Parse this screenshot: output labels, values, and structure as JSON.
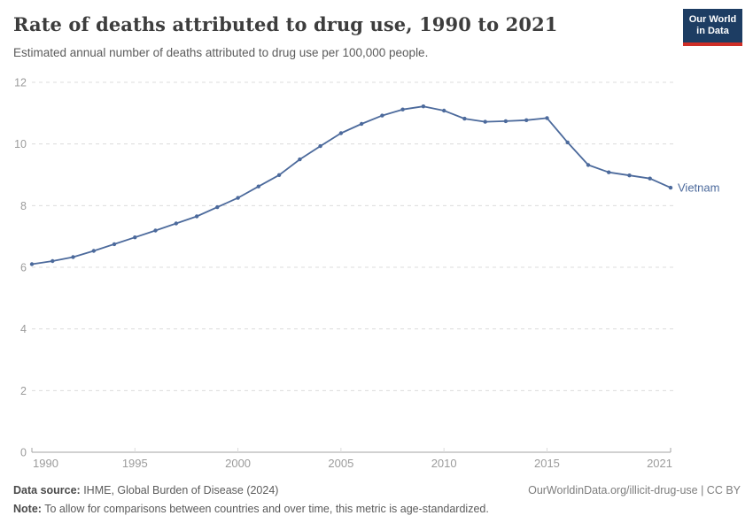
{
  "header": {
    "title": "Rate of deaths attributed to drug use, 1990 to 2021",
    "subtitle": "Estimated annual number of deaths attributed to drug use per 100,000 people.",
    "logo_line1": "Our World",
    "logo_line2": "in Data",
    "logo_bg": "#1d3d63",
    "logo_accent": "#cf2e27"
  },
  "chart_data": {
    "type": "line",
    "title": "Rate of deaths attributed to drug use, 1990 to 2021",
    "ylabel": "",
    "xlabel": "",
    "xlim": [
      1990,
      2021
    ],
    "ylim": [
      0,
      12
    ],
    "x_ticks": [
      1990,
      1995,
      2000,
      2005,
      2010,
      2015,
      2021
    ],
    "y_ticks": [
      0,
      2,
      4,
      6,
      8,
      10,
      12
    ],
    "grid": "horizontal-dashed",
    "legend_position": "end-of-line-label",
    "colors": {
      "line": "#4c6a9c",
      "grid": "#dcdcdc",
      "axis": "#a3a3a3",
      "tick_text": "#9b9b9b"
    },
    "series": [
      {
        "name": "Vietnam",
        "color": "#4c6a9c",
        "x": [
          1990,
          1991,
          1992,
          1993,
          1994,
          1995,
          1996,
          1997,
          1998,
          1999,
          2000,
          2001,
          2002,
          2003,
          2004,
          2005,
          2006,
          2007,
          2008,
          2009,
          2010,
          2011,
          2012,
          2013,
          2014,
          2015,
          2016,
          2017,
          2018,
          2019,
          2020,
          2021
        ],
        "values": [
          6.1,
          6.2,
          6.33,
          6.53,
          6.75,
          6.97,
          7.19,
          7.42,
          7.65,
          7.95,
          8.25,
          8.62,
          8.99,
          9.5,
          9.93,
          10.35,
          10.65,
          10.92,
          11.12,
          11.22,
          11.08,
          10.82,
          10.72,
          10.74,
          10.77,
          10.84,
          10.05,
          9.32,
          9.08,
          8.98,
          8.88,
          8.58
        ]
      }
    ]
  },
  "footer": {
    "data_source_label": "Data source:",
    "data_source_text": " IHME, Global Burden of Disease (2024)",
    "rights": "OurWorldinData.org/illicit-drug-use | CC BY",
    "note_label": "Note:",
    "note_text": " To allow for comparisons between countries and over time, this metric is age-standardized."
  }
}
